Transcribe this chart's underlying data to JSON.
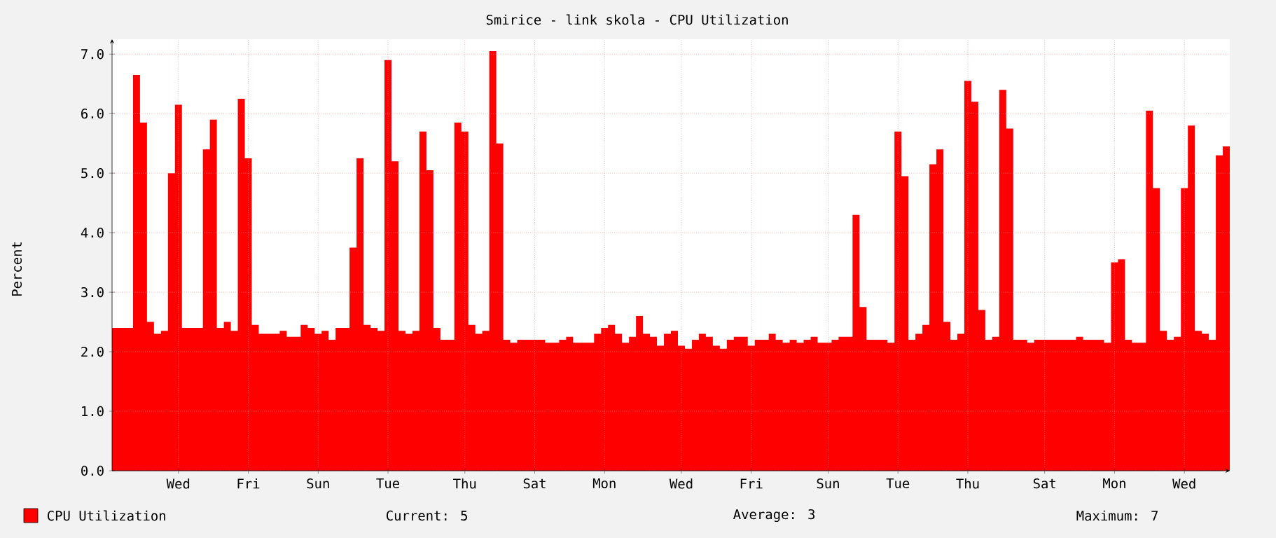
{
  "chart_data": {
    "type": "area",
    "title": "Smirice - link skola - CPU Utilization",
    "ylabel": "Percent",
    "categories": [
      null,
      null,
      null,
      null,
      null,
      null,
      null,
      null,
      null,
      "Wed",
      null,
      null,
      null,
      null,
      null,
      null,
      null,
      null,
      null,
      "Fri",
      null,
      null,
      null,
      null,
      null,
      null,
      null,
      null,
      null,
      "Sun",
      null,
      null,
      null,
      null,
      null,
      null,
      null,
      null,
      null,
      "Tue",
      null,
      null,
      null,
      null,
      null,
      null,
      null,
      null,
      null,
      null,
      "Thu",
      null,
      null,
      null,
      null,
      null,
      null,
      null,
      null,
      null,
      "Sat",
      null,
      null,
      null,
      null,
      null,
      null,
      null,
      null,
      null,
      "Mon",
      null,
      null,
      null,
      null,
      null,
      null,
      null,
      null,
      null,
      null,
      "Wed",
      null,
      null,
      null,
      null,
      null,
      null,
      null,
      null,
      null,
      "Fri",
      null,
      null,
      null,
      null,
      null,
      null,
      null,
      null,
      null,
      null,
      "Sun",
      null,
      null,
      null,
      null,
      null,
      null,
      null,
      null,
      null,
      "Tue",
      null,
      null,
      null,
      null,
      null,
      null,
      null,
      null,
      null,
      "Thu",
      null,
      null,
      null,
      null,
      null,
      null,
      null,
      null,
      null,
      null,
      "Sat",
      null,
      null,
      null,
      null,
      null,
      null,
      null,
      null,
      null,
      "Mon",
      null,
      null,
      null,
      null,
      null,
      null,
      null,
      null,
      null,
      "Wed",
      null,
      null,
      null,
      null,
      null,
      null
    ],
    "series": [
      {
        "name": "CPU Utilization",
        "color": "#ff0000",
        "values": [
          2.4,
          2.4,
          2.4,
          6.65,
          5.85,
          2.5,
          2.3,
          2.35,
          5.0,
          6.15,
          2.4,
          2.4,
          2.4,
          5.4,
          5.9,
          2.4,
          2.5,
          2.35,
          6.25,
          5.25,
          2.45,
          2.3,
          2.3,
          2.3,
          2.35,
          2.25,
          2.25,
          2.45,
          2.4,
          2.3,
          2.35,
          2.2,
          2.4,
          2.4,
          3.75,
          5.25,
          2.45,
          2.4,
          2.35,
          6.9,
          5.2,
          2.35,
          2.3,
          2.35,
          5.7,
          5.05,
          2.4,
          2.2,
          2.2,
          5.85,
          5.7,
          2.45,
          2.3,
          2.35,
          7.05,
          5.5,
          2.2,
          2.15,
          2.2,
          2.2,
          2.2,
          2.2,
          2.15,
          2.15,
          2.2,
          2.25,
          2.15,
          2.15,
          2.15,
          2.3,
          2.4,
          2.45,
          2.3,
          2.15,
          2.25,
          2.6,
          2.3,
          2.25,
          2.1,
          2.3,
          2.35,
          2.1,
          2.05,
          2.2,
          2.3,
          2.25,
          2.1,
          2.05,
          2.2,
          2.25,
          2.25,
          2.1,
          2.2,
          2.2,
          2.3,
          2.2,
          2.15,
          2.2,
          2.15,
          2.2,
          2.25,
          2.15,
          2.15,
          2.2,
          2.25,
          2.25,
          4.3,
          2.75,
          2.2,
          2.2,
          2.2,
          2.15,
          5.7,
          4.95,
          2.2,
          2.3,
          2.45,
          5.15,
          5.4,
          2.5,
          2.2,
          2.3,
          6.55,
          6.2,
          2.7,
          2.2,
          2.25,
          6.4,
          5.75,
          2.2,
          2.2,
          2.15,
          2.2,
          2.2,
          2.2,
          2.2,
          2.2,
          2.2,
          2.25,
          2.2,
          2.2,
          2.2,
          2.15,
          3.5,
          3.55,
          2.2,
          2.15,
          2.15,
          6.05,
          4.75,
          2.35,
          2.2,
          2.25,
          4.75,
          5.8,
          2.35,
          2.3,
          2.2,
          5.3,
          5.45
        ]
      }
    ],
    "ylim": [
      0,
      7.25
    ],
    "yticks": [
      {
        "value": 0,
        "label": "0.0"
      },
      {
        "value": 1,
        "label": "1.0"
      },
      {
        "value": 2,
        "label": "2.0"
      },
      {
        "value": 3,
        "label": "3.0"
      },
      {
        "value": 4,
        "label": "4.0"
      },
      {
        "value": 5,
        "label": "5.0"
      },
      {
        "value": 6,
        "label": "6.0"
      },
      {
        "value": 7,
        "label": "7.0"
      }
    ],
    "grid": true,
    "legend": "bottom left",
    "annotations": [
      "Current: 5",
      "Average: 3",
      "Maximum: 7"
    ]
  }
}
